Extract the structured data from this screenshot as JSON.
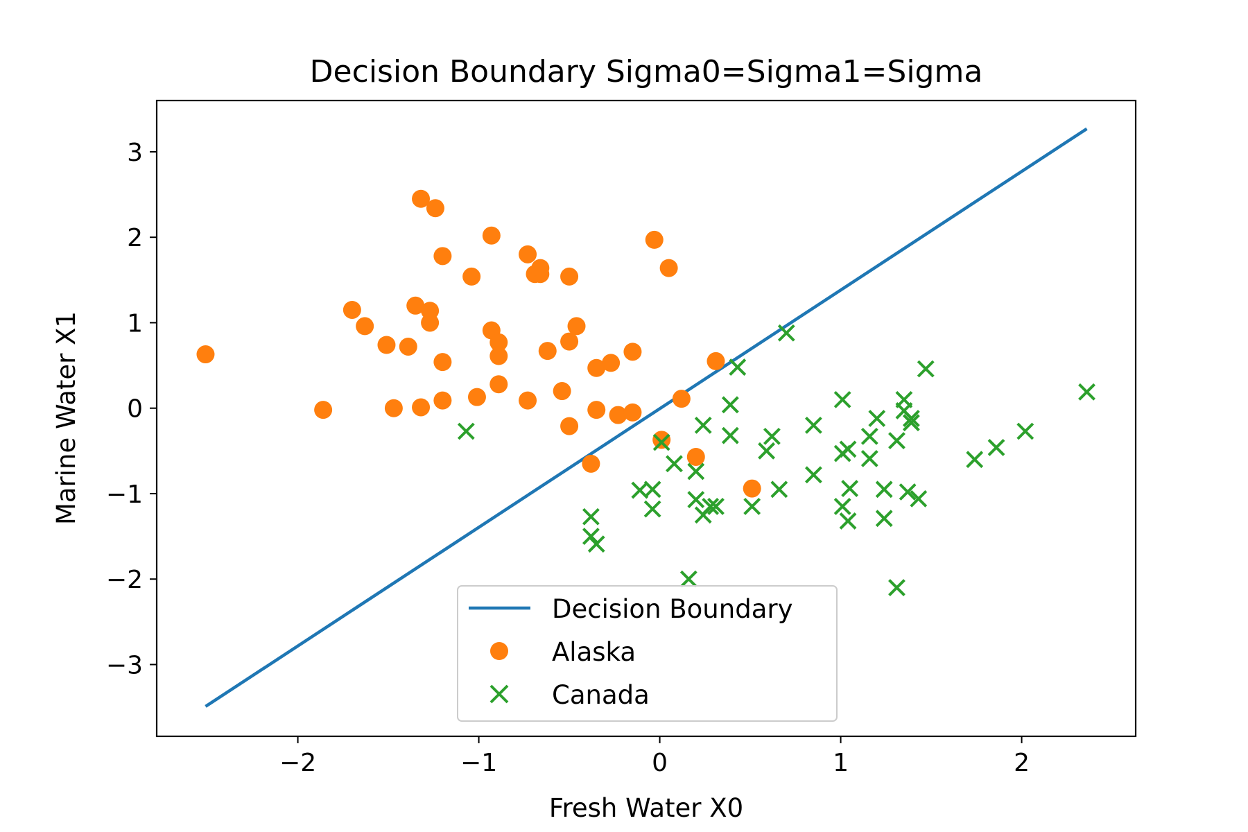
{
  "chart_data": {
    "type": "scatter",
    "title": "Decision Boundary Sigma0=Sigma1=Sigma",
    "xlabel": "Fresh Water X0",
    "ylabel": "Marine Water X1",
    "xlim": [
      -2.78,
      2.63
    ],
    "ylim": [
      -3.84,
      3.6
    ],
    "xticks": [
      {
        "value": -2,
        "label": "−2"
      },
      {
        "value": -1,
        "label": "−1"
      },
      {
        "value": 0,
        "label": "0"
      },
      {
        "value": 1,
        "label": "1"
      },
      {
        "value": 2,
        "label": "2"
      }
    ],
    "yticks": [
      {
        "value": 3,
        "label": "3"
      },
      {
        "value": 2,
        "label": "2"
      },
      {
        "value": 1,
        "label": "1"
      },
      {
        "value": 0,
        "label": "0"
      },
      {
        "value": -1,
        "label": "−1"
      },
      {
        "value": -2,
        "label": "−2"
      },
      {
        "value": -3,
        "label": "−3"
      }
    ],
    "legend_position": "lower-center",
    "series": [
      {
        "name": "Decision Boundary",
        "kind": "line",
        "color": "#1f77b4",
        "x": [
          -2.51,
          2.36
        ],
        "y": [
          -3.49,
          3.27
        ]
      },
      {
        "name": "Alaska",
        "kind": "scatter",
        "marker": "circle",
        "color": "#ff7f0e",
        "points": [
          [
            -2.51,
            0.63
          ],
          [
            -1.86,
            -0.02
          ],
          [
            -1.7,
            1.15
          ],
          [
            -1.63,
            0.96
          ],
          [
            -1.51,
            0.74
          ],
          [
            -1.47,
            0.0
          ],
          [
            -1.39,
            0.72
          ],
          [
            -1.35,
            1.2
          ],
          [
            -1.32,
            0.01
          ],
          [
            -1.32,
            2.45
          ],
          [
            -1.27,
            1.14
          ],
          [
            -1.27,
            1.0
          ],
          [
            -1.24,
            2.34
          ],
          [
            -1.2,
            1.78
          ],
          [
            -1.2,
            0.54
          ],
          [
            -1.2,
            0.09
          ],
          [
            -1.04,
            1.54
          ],
          [
            -1.01,
            0.13
          ],
          [
            -0.93,
            2.02
          ],
          [
            -0.93,
            0.91
          ],
          [
            -0.89,
            0.77
          ],
          [
            -0.89,
            0.61
          ],
          [
            -0.89,
            0.28
          ],
          [
            -0.73,
            1.8
          ],
          [
            -0.73,
            0.09
          ],
          [
            -0.69,
            1.57
          ],
          [
            -0.66,
            1.57
          ],
          [
            -0.66,
            1.64
          ],
          [
            -0.62,
            0.67
          ],
          [
            -0.54,
            0.2
          ],
          [
            -0.5,
            1.54
          ],
          [
            -0.5,
            0.78
          ],
          [
            -0.5,
            -0.21
          ],
          [
            -0.46,
            0.96
          ],
          [
            -0.38,
            -0.65
          ],
          [
            -0.35,
            0.47
          ],
          [
            -0.35,
            -0.02
          ],
          [
            -0.27,
            0.53
          ],
          [
            -0.23,
            -0.08
          ],
          [
            -0.15,
            0.66
          ],
          [
            -0.15,
            -0.05
          ],
          [
            -0.03,
            1.97
          ],
          [
            0.01,
            -0.37
          ],
          [
            0.05,
            1.64
          ],
          [
            0.12,
            0.11
          ],
          [
            0.2,
            -0.57
          ],
          [
            0.31,
            0.55
          ],
          [
            0.51,
            -0.94
          ]
        ]
      },
      {
        "name": "Canada",
        "kind": "scatter",
        "marker": "x",
        "color": "#2ca02c",
        "points": [
          [
            -1.07,
            -0.27
          ],
          [
            -0.38,
            -1.27
          ],
          [
            -0.38,
            -1.5
          ],
          [
            -0.35,
            -1.59
          ],
          [
            -0.11,
            -0.96
          ],
          [
            -0.04,
            -0.95
          ],
          [
            -0.04,
            -1.18
          ],
          [
            0.01,
            -0.4
          ],
          [
            0.08,
            -0.65
          ],
          [
            0.16,
            -2.0
          ],
          [
            0.2,
            -0.74
          ],
          [
            0.2,
            -1.07
          ],
          [
            0.24,
            -0.2
          ],
          [
            0.24,
            -1.25
          ],
          [
            0.28,
            -1.15
          ],
          [
            0.31,
            -1.15
          ],
          [
            0.39,
            0.04
          ],
          [
            0.39,
            -0.32
          ],
          [
            0.43,
            0.48
          ],
          [
            0.51,
            -1.15
          ],
          [
            0.59,
            -0.5
          ],
          [
            0.62,
            -0.33
          ],
          [
            0.66,
            -0.95
          ],
          [
            0.7,
            0.88
          ],
          [
            0.85,
            -0.2
          ],
          [
            0.85,
            -0.78
          ],
          [
            1.01,
            0.1
          ],
          [
            1.01,
            -0.53
          ],
          [
            1.01,
            -1.15
          ],
          [
            1.04,
            -0.48
          ],
          [
            1.04,
            -1.32
          ],
          [
            1.05,
            -0.94
          ],
          [
            1.16,
            -0.33
          ],
          [
            1.16,
            -0.59
          ],
          [
            1.2,
            -0.12
          ],
          [
            1.24,
            -0.95
          ],
          [
            1.24,
            -1.29
          ],
          [
            1.31,
            -0.38
          ],
          [
            1.31,
            -2.1
          ],
          [
            1.35,
            0.1
          ],
          [
            1.35,
            -0.03
          ],
          [
            1.37,
            -0.98
          ],
          [
            1.39,
            -0.12
          ],
          [
            1.39,
            -0.17
          ],
          [
            1.43,
            -1.06
          ],
          [
            1.47,
            0.46
          ],
          [
            1.74,
            -0.6
          ],
          [
            1.86,
            -0.46
          ],
          [
            2.02,
            -0.27
          ],
          [
            2.36,
            0.19
          ]
        ]
      }
    ]
  }
}
